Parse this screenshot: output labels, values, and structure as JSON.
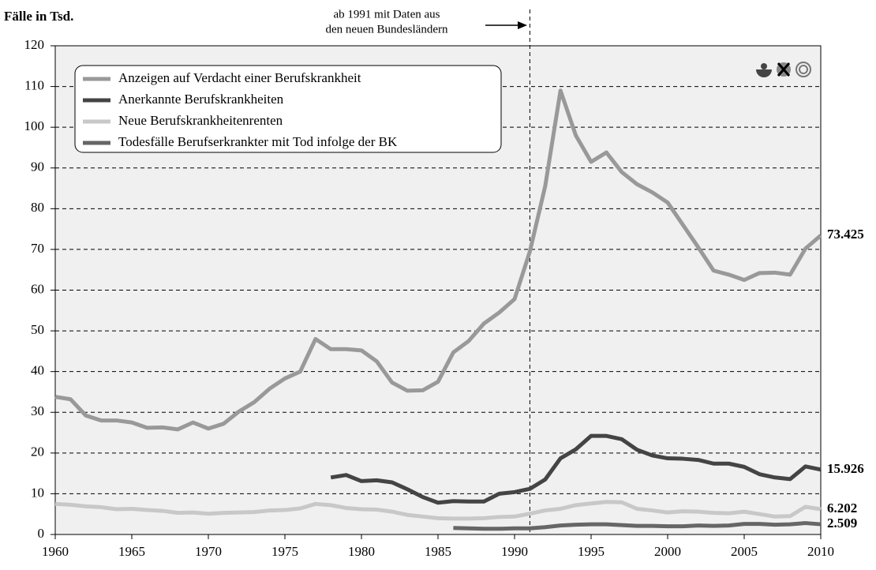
{
  "chart_data": {
    "type": "line",
    "y_label": "Fälle in Tsd.",
    "annotation": [
      "ab 1991 mit Daten aus",
      "den neuen Bundesländern"
    ],
    "vline": 1991,
    "xlim": [
      1960,
      2010
    ],
    "xticks": [
      1960,
      1965,
      1970,
      1975,
      1980,
      1985,
      1990,
      1995,
      2000,
      2005,
      2010
    ],
    "ylim": [
      0,
      120
    ],
    "yticks": [
      0,
      10,
      20,
      30,
      40,
      50,
      60,
      70,
      80,
      90,
      100,
      110,
      120
    ],
    "grid": true,
    "legend": "top-left",
    "x": [
      1960,
      1961,
      1962,
      1963,
      1964,
      1965,
      1966,
      1967,
      1968,
      1969,
      1970,
      1971,
      1972,
      1973,
      1974,
      1975,
      1976,
      1977,
      1978,
      1979,
      1980,
      1981,
      1982,
      1983,
      1984,
      1985,
      1986,
      1987,
      1988,
      1989,
      1990,
      1991,
      1992,
      1993,
      1994,
      1995,
      1996,
      1997,
      1998,
      1999,
      2000,
      2001,
      2002,
      2003,
      2004,
      2005,
      2006,
      2007,
      2008,
      2009,
      2010
    ],
    "series": [
      {
        "name": "Anzeigen auf Verdacht einer Berufskrankheit",
        "color": "#999999",
        "values": [
          33.8,
          33.2,
          29.2,
          28,
          28,
          27.5,
          26.2,
          26.3,
          25.8,
          27.5,
          26,
          27.2,
          30.2,
          32.5,
          35.8,
          38.3,
          40,
          48,
          45.5,
          45.5,
          45.2,
          42.5,
          37.3,
          35.3,
          35.4,
          37.5,
          44.7,
          47.5,
          51.8,
          54.5,
          57.8,
          69.5,
          85.5,
          109,
          98,
          91.5,
          93.8,
          89,
          86,
          84,
          81.5,
          76,
          70.5,
          64.8,
          63.8,
          62.5,
          64.2,
          64.3,
          63.8,
          70.2,
          73.425
        ]
      },
      {
        "name": "Anerkannte Berufskrankheiten",
        "color": "#444444",
        "values": [
          null,
          null,
          null,
          null,
          null,
          null,
          null,
          null,
          null,
          null,
          null,
          null,
          null,
          null,
          null,
          null,
          null,
          null,
          14,
          14.6,
          13.1,
          13.3,
          12.8,
          11.1,
          9.2,
          7.8,
          8.2,
          8.1,
          8.1,
          10,
          10.4,
          11.2,
          13.5,
          18.7,
          20.9,
          24.2,
          24.2,
          23.4,
          20.8,
          19.4,
          18.7,
          18.6,
          18.3,
          17.4,
          17.4,
          16.6,
          14.8,
          14,
          13.6,
          16.7,
          15.926
        ]
      },
      {
        "name": "Neue Berufskrankheitenrenten",
        "color": "#c8c8c8",
        "values": [
          7.5,
          7.3,
          6.9,
          6.7,
          6.2,
          6.3,
          6,
          5.8,
          5.3,
          5.4,
          5.1,
          5.3,
          5.4,
          5.5,
          5.9,
          6,
          6.4,
          7.5,
          7.2,
          6.5,
          6.2,
          6.1,
          5.6,
          4.8,
          4.4,
          4,
          3.9,
          3.9,
          4,
          4.3,
          4.4,
          5.1,
          5.9,
          6.3,
          7.2,
          7.6,
          8,
          7.9,
          6.3,
          5.9,
          5.4,
          5.7,
          5.6,
          5.3,
          5.2,
          5.6,
          5,
          4.4,
          4.5,
          6.8,
          6.202
        ]
      },
      {
        "name": "Todesfälle Berufserkrankter mit Tod infolge der BK",
        "color": "#666666",
        "values": [
          null,
          null,
          null,
          null,
          null,
          null,
          null,
          null,
          null,
          null,
          null,
          null,
          null,
          null,
          null,
          null,
          null,
          null,
          null,
          null,
          null,
          null,
          null,
          null,
          null,
          null,
          1.6,
          1.5,
          1.4,
          1.4,
          1.5,
          1.5,
          1.8,
          2.2,
          2.4,
          2.5,
          2.5,
          2.3,
          2.1,
          2.1,
          2,
          2,
          2.2,
          2.1,
          2.2,
          2.6,
          2.6,
          2.4,
          2.5,
          2.8,
          2.509
        ]
      }
    ]
  }
}
